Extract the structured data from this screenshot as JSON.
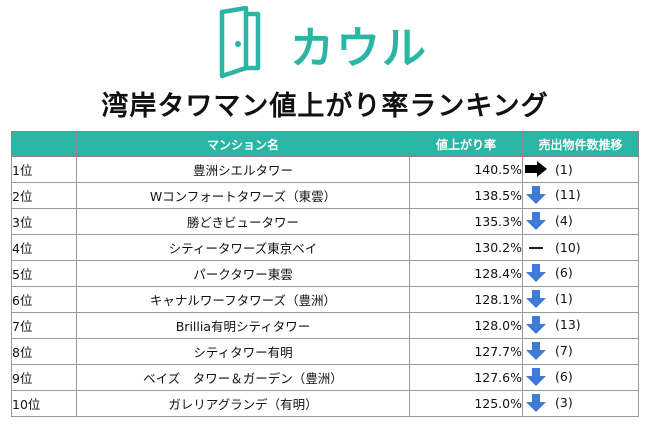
{
  "brand": {
    "name": "カウル",
    "color": "#2bb5a4"
  },
  "title": "湾岸タワマン値上がり率ランキング",
  "colors": {
    "header_bg": "#2bb5a4",
    "down_arrow": "#3f7bd6",
    "right_arrow": "#000000"
  },
  "table": {
    "headers": {
      "rank": "",
      "name": "マンション名",
      "rate": "値上がり率",
      "trend": "売出物件数推移"
    },
    "rows": [
      {
        "rank": "1位",
        "name": "豊洲シエルタワー",
        "rate": "140.5%",
        "trend": "right",
        "count": "(1)"
      },
      {
        "rank": "2位",
        "name": "Wコンフォートタワーズ（東雲）",
        "rate": "138.5%",
        "trend": "down",
        "count": "(11)"
      },
      {
        "rank": "3位",
        "name": "勝どきビュータワー",
        "rate": "135.3%",
        "trend": "down",
        "count": "(4)"
      },
      {
        "rank": "4位",
        "name": "シティータワーズ東京ベイ",
        "rate": "130.2%",
        "trend": "flat",
        "count": "(10)"
      },
      {
        "rank": "5位",
        "name": "パークタワー東雲",
        "rate": "128.4%",
        "trend": "down",
        "count": "(6)"
      },
      {
        "rank": "6位",
        "name": "キャナルワーフタワーズ（豊洲）",
        "rate": "128.1%",
        "trend": "down",
        "count": "(1)"
      },
      {
        "rank": "7位",
        "name": "Brillia有明シティタワー",
        "rate": "128.0%",
        "trend": "down",
        "count": "(13)"
      },
      {
        "rank": "8位",
        "name": "シティタワー有明",
        "rate": "127.7%",
        "trend": "down",
        "count": "(7)"
      },
      {
        "rank": "9位",
        "name": "ベイズ　タワー＆ガーデン（豊洲）",
        "rate": "127.6%",
        "trend": "down",
        "count": "(6)"
      },
      {
        "rank": "10位",
        "name": "ガレリアグランデ（有明）",
        "rate": "125.0%",
        "trend": "down",
        "count": "(3)"
      }
    ]
  }
}
